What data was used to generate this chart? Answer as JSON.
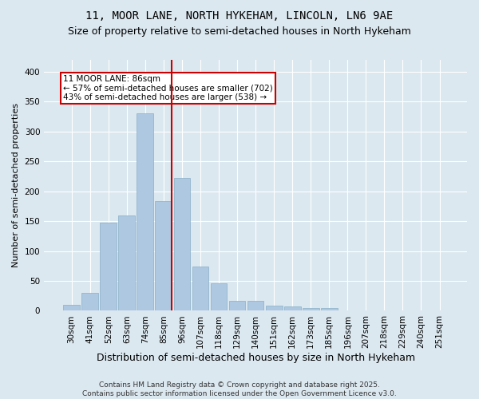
{
  "title": "11, MOOR LANE, NORTH HYKEHAM, LINCOLN, LN6 9AE",
  "subtitle": "Size of property relative to semi-detached houses in North Hykeham",
  "xlabel": "Distribution of semi-detached houses by size in North Hykeham",
  "ylabel": "Number of semi-detached properties",
  "categories": [
    "30sqm",
    "41sqm",
    "52sqm",
    "63sqm",
    "74sqm",
    "85sqm",
    "96sqm",
    "107sqm",
    "118sqm",
    "129sqm",
    "140sqm",
    "151sqm",
    "162sqm",
    "173sqm",
    "185sqm",
    "196sqm",
    "207sqm",
    "218sqm",
    "229sqm",
    "240sqm",
    "251sqm"
  ],
  "values": [
    10,
    30,
    148,
    160,
    330,
    183,
    222,
    74,
    46,
    17,
    16,
    8,
    7,
    5,
    4,
    1,
    0,
    0,
    0,
    0,
    0
  ],
  "bar_color": "#adc8e0",
  "bar_edge_color": "#88afc8",
  "vline_color": "#cc0000",
  "annotation_text": "11 MOOR LANE: 86sqm\n← 57% of semi-detached houses are smaller (702)\n43% of semi-detached houses are larger (538) →",
  "annotation_box_color": "white",
  "annotation_box_edge": "#cc0000",
  "ylim": [
    0,
    420
  ],
  "yticks": [
    0,
    50,
    100,
    150,
    200,
    250,
    300,
    350,
    400
  ],
  "background_color": "#dce8f0",
  "grid_color": "#ffffff",
  "footer": "Contains HM Land Registry data © Crown copyright and database right 2025.\nContains public sector information licensed under the Open Government Licence v3.0.",
  "title_fontsize": 10,
  "subtitle_fontsize": 9,
  "ylabel_fontsize": 8,
  "xlabel_fontsize": 9,
  "tick_fontsize": 7.5,
  "footer_fontsize": 6.5
}
